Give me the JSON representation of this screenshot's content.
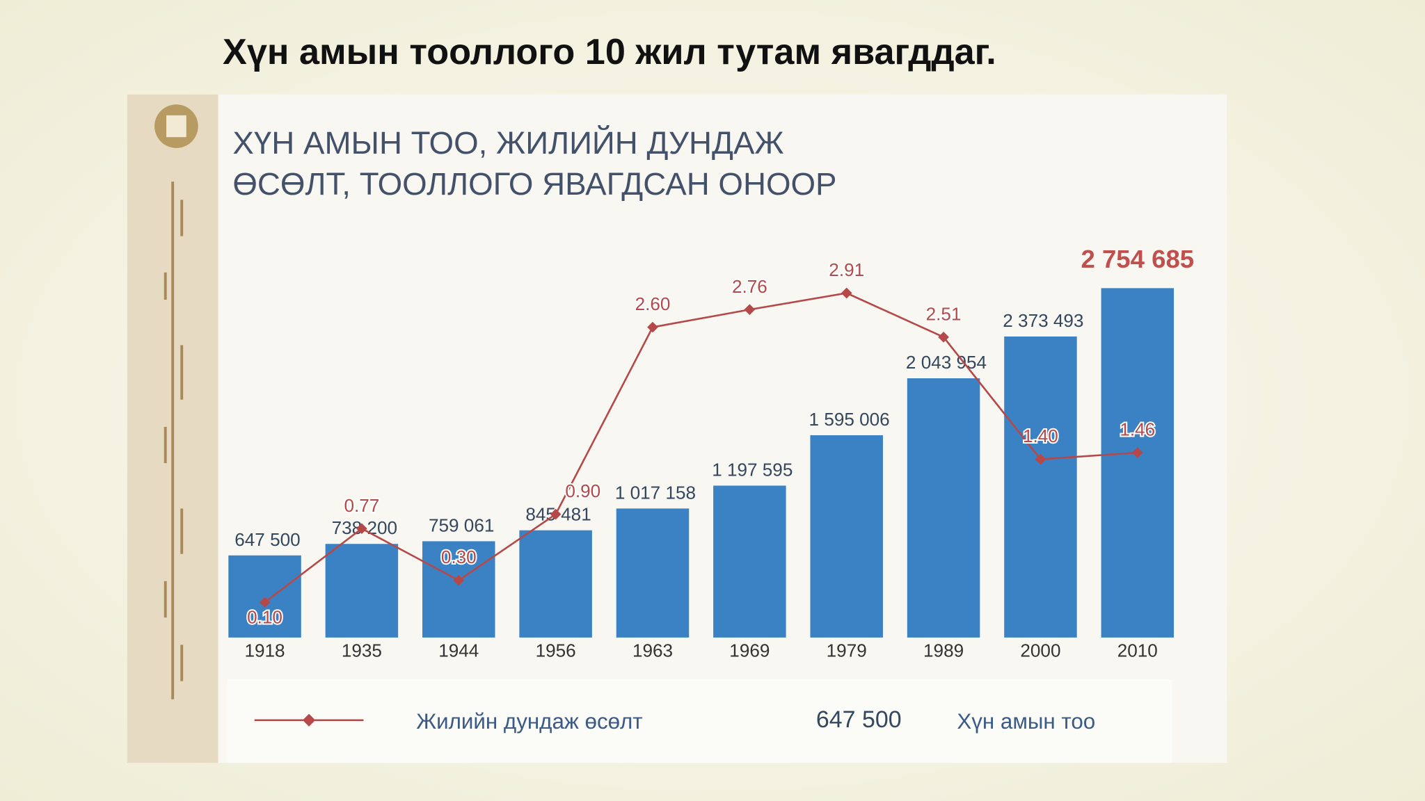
{
  "slide_title": "Хүн амын тооллого 10 жил тутам явагддаг.",
  "chart_data": {
    "type": "bar",
    "title": [
      "ХҮН АМЫН ТОО, ЖИЛИЙН ДУНДАЖ",
      "ӨСӨЛТ, ТООЛЛОГО ЯВАГДСАН ОНООР"
    ],
    "categories": [
      "1918",
      "1935",
      "1944",
      "1956",
      "1963",
      "1969",
      "1979",
      "1989",
      "2000",
      "2010"
    ],
    "ylim": [
      0,
      2950000
    ],
    "y2lim": [
      -0.22,
      3.18
    ],
    "series": [
      {
        "name": "Хүн амын тоо",
        "type": "bar",
        "color": "#3b82c4",
        "legend_sample": "647 500",
        "values": [
          647500,
          738200,
          759061,
          845481,
          1017158,
          1197595,
          1595006,
          2043954,
          2373493,
          2754685
        ],
        "value_labels": [
          "647 500",
          "738 200",
          "759 061",
          "845 481",
          "1 017 158",
          "1 197 595",
          "1 595 006",
          "2 043 954",
          "2 373 493",
          "2 754 685"
        ]
      },
      {
        "name": "Жилийн дундаж өсөлт",
        "type": "line",
        "axis": "y2",
        "color": "#b5494a",
        "values": [
          0.1,
          0.77,
          0.3,
          0.9,
          2.6,
          2.76,
          2.91,
          2.51,
          1.4,
          1.46
        ],
        "value_labels": [
          "0.10",
          "0.77",
          "0.30",
          "0.90",
          "2.60",
          "2.76",
          "2.91",
          "2.51",
          "1.40",
          "1.46"
        ]
      }
    ]
  }
}
